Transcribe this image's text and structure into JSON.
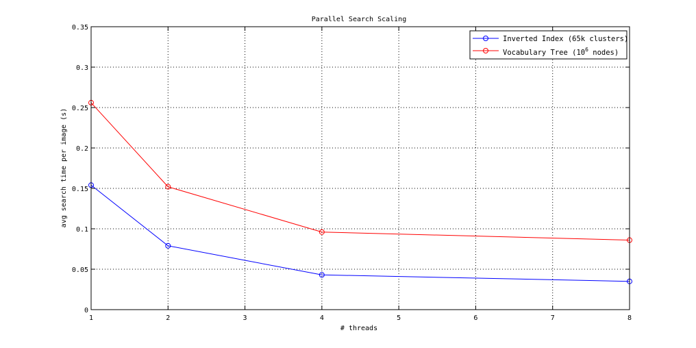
{
  "chart_data": {
    "type": "line",
    "title": "Parallel Search Scaling",
    "xlabel": "# threads",
    "ylabel": "avg search time per image (s)",
    "xlim": [
      1,
      8
    ],
    "ylim": [
      0,
      0.35
    ],
    "xticks": [
      1,
      2,
      3,
      4,
      5,
      6,
      7,
      8
    ],
    "yticks": [
      0,
      0.05,
      0.1,
      0.15,
      0.2,
      0.25,
      0.3,
      0.35
    ],
    "xtick_labels": [
      "1",
      "2",
      "3",
      "4",
      "5",
      "6",
      "7",
      "8"
    ],
    "ytick_labels": [
      "0",
      "0.05",
      "0.1",
      "0.15",
      "0.2",
      "0.25",
      "0.3",
      "0.35"
    ],
    "grid": true,
    "legend_position": "top-right",
    "series": [
      {
        "name": "Inverted Index (65k clusters)",
        "color": "#0000ff",
        "marker": "circle",
        "x": [
          1,
          2,
          4,
          8
        ],
        "y": [
          0.154,
          0.079,
          0.043,
          0.035
        ]
      },
      {
        "name_parts": {
          "before": "Vocabulary Tree (10",
          "sup": "6",
          "after": " nodes)"
        },
        "color": "#ff0000",
        "marker": "circle",
        "x": [
          1,
          2,
          4,
          8
        ],
        "y": [
          0.256,
          0.152,
          0.096,
          0.086
        ]
      }
    ]
  }
}
